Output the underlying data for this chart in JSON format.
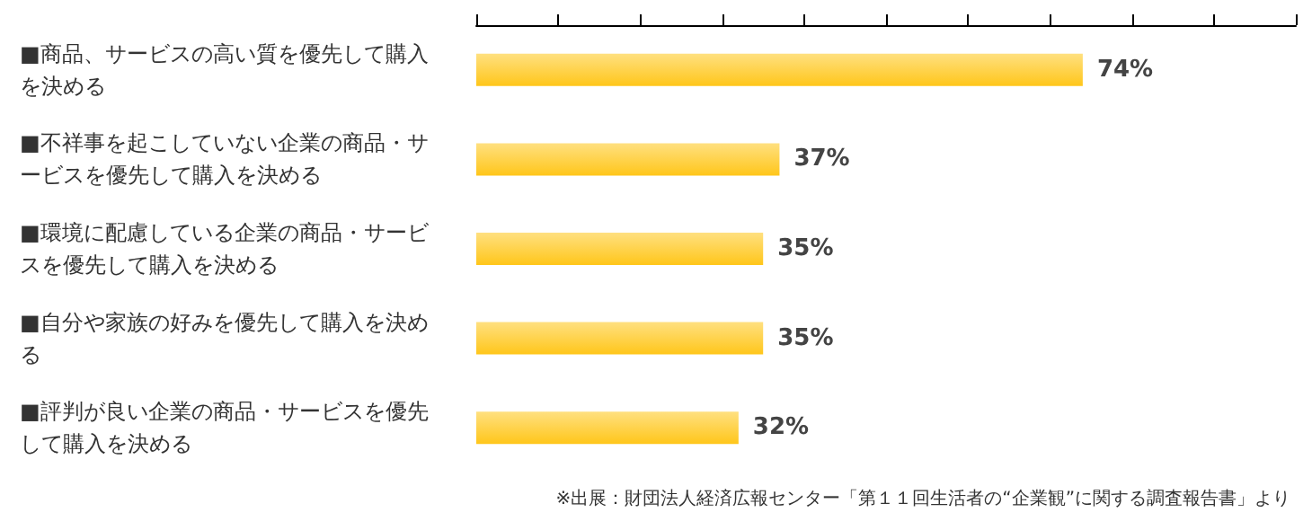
{
  "chart_data": {
    "type": "bar",
    "orientation": "horizontal",
    "categories": [
      "■商品、サービスの高い質を優先して購入を決める",
      "■不祥事を起こしていない企業の商品・サービスを優先して購入を決める",
      "■環境に配慮している企業の商品・サービスを優先して購入を決める",
      "■自分や家族の好みを優先して購入を決める",
      "■評判が良い企業の商品・サービスを優先して購入を決める"
    ],
    "values": [
      74,
      37,
      35,
      35,
      32
    ],
    "value_labels": [
      "74%",
      "37%",
      "35%",
      "35%",
      "32%"
    ],
    "color": "#ffc61a",
    "xlim": [
      0,
      100
    ],
    "xticks": [
      {
        "value": 0,
        "label": null
      },
      {
        "value": 10,
        "label": null
      },
      {
        "value": 20,
        "label": null
      },
      {
        "value": 30,
        "label": null
      },
      {
        "value": 40,
        "label": null
      },
      {
        "value": 50,
        "label": null
      },
      {
        "value": 60,
        "label": null
      },
      {
        "value": 70,
        "label": null
      },
      {
        "value": 80,
        "label": null
      },
      {
        "value": 90,
        "label": null
      },
      {
        "value": 100,
        "label": null
      }
    ],
    "tick_labels": "y",
    "grid": false,
    "annotations": [
      "※出展：財団法人経済広報センター「第１１回生活者の“企業観”に関する調査報告書」より"
    ]
  }
}
